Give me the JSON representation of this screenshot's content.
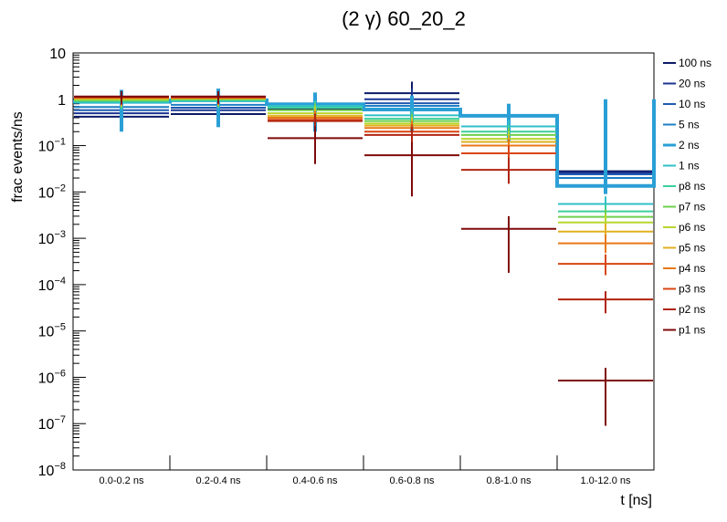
{
  "chart_data": {
    "type": "histogram",
    "title": "(2 γ) 60_20_2",
    "xlabel": "t [ns]",
    "ylabel": "frac events/ns",
    "yscale": "log",
    "ylim": [
      1e-08,
      10
    ],
    "y_ticks": [
      {
        "value": 10,
        "base": "10",
        "exp": ""
      },
      {
        "value": 1,
        "base": "1",
        "exp": ""
      },
      {
        "value": 0.1,
        "base": "10",
        "exp": "−1"
      },
      {
        "value": 0.01,
        "base": "10",
        "exp": "−2"
      },
      {
        "value": 0.001,
        "base": "10",
        "exp": "−3"
      },
      {
        "value": 0.0001,
        "base": "10",
        "exp": "−4"
      },
      {
        "value": 1e-05,
        "base": "10",
        "exp": "−5"
      },
      {
        "value": 1e-06,
        "base": "10",
        "exp": "−6"
      },
      {
        "value": 1e-07,
        "base": "10",
        "exp": "−7"
      },
      {
        "value": 1e-08,
        "base": "10",
        "exp": "−8"
      }
    ],
    "categories": [
      "0.0-0.2 ns",
      "0.2-0.4 ns",
      "0.4-0.6 ns",
      "0.6-0.8 ns",
      "0.8-1.0 ns",
      "1.0-12.0 ns"
    ],
    "highlight_series": "2 ns",
    "series": [
      {
        "name": "100 ns",
        "color": "#0b1a66",
        "values": [
          0.42,
          0.48,
          0.62,
          1.35,
          0.45,
          0.028
        ],
        "err_lo": [
          0.32,
          0.37,
          0.45,
          0.72,
          0.33,
          0.02
        ],
        "err_hi": [
          0.6,
          0.65,
          0.9,
          2.4,
          0.65,
          0.036
        ]
      },
      {
        "name": "20 ns",
        "color": "#1b3590",
        "values": [
          0.5,
          0.58,
          0.66,
          1.0,
          0.44,
          0.026
        ],
        "err_lo": [
          0.4,
          0.45,
          0.5,
          0.6,
          0.32,
          0.019
        ],
        "err_hi": [
          0.65,
          0.75,
          0.9,
          1.7,
          0.62,
          0.034
        ]
      },
      {
        "name": "10 ns",
        "color": "#1f5bb0",
        "values": [
          0.58,
          0.66,
          0.7,
          0.82,
          0.44,
          0.024
        ],
        "err_lo": [
          0.45,
          0.5,
          0.52,
          0.55,
          0.32,
          0.017
        ],
        "err_hi": [
          0.75,
          0.85,
          0.95,
          1.2,
          0.62,
          0.032
        ]
      },
      {
        "name": "5 ns",
        "color": "#1e7fc4",
        "values": [
          0.68,
          0.76,
          0.74,
          0.72,
          0.44,
          0.02
        ],
        "err_lo": [
          0.52,
          0.58,
          0.55,
          0.5,
          0.32,
          0.014
        ],
        "err_hi": [
          0.9,
          0.98,
          0.98,
          1.05,
          0.62,
          0.028
        ]
      },
      {
        "name": "2 ns",
        "color": "#2a9fd6",
        "values": [
          0.88,
          0.95,
          0.78,
          0.6,
          0.44,
          0.0135
        ],
        "err_lo": [
          0.2,
          0.25,
          0.2,
          0.2,
          0.12,
          0.009
        ],
        "err_hi": [
          1.6,
          1.7,
          1.4,
          1.2,
          0.8,
          1.0
        ]
      },
      {
        "name": "1 ns",
        "color": "#2fc0c8",
        "values": [
          0.85,
          0.92,
          0.72,
          0.45,
          0.26,
          0.0055
        ],
        "err_lo": [
          0.6,
          0.65,
          0.5,
          0.3,
          0.17,
          0.0035
        ],
        "err_hi": [
          1.1,
          1.2,
          0.95,
          0.62,
          0.36,
          0.008
        ]
      },
      {
        "name": "p8 ns",
        "color": "#3ccf9c",
        "values": [
          0.9,
          0.95,
          0.66,
          0.38,
          0.2,
          0.0038
        ],
        "err_lo": [
          0.62,
          0.67,
          0.45,
          0.25,
          0.13,
          0.0025
        ],
        "err_hi": [
          1.2,
          1.25,
          0.9,
          0.52,
          0.28,
          0.0055
        ]
      },
      {
        "name": "p7 ns",
        "color": "#6fcf4e",
        "values": [
          0.95,
          1.0,
          0.58,
          0.34,
          0.17,
          0.0029
        ],
        "err_lo": [
          0.65,
          0.7,
          0.4,
          0.22,
          0.11,
          0.0019
        ],
        "err_hi": [
          1.25,
          1.3,
          0.8,
          0.48,
          0.24,
          0.0042
        ]
      },
      {
        "name": "p6 ns",
        "color": "#b8d62e",
        "values": [
          1.0,
          1.03,
          0.5,
          0.3,
          0.14,
          0.0022
        ],
        "err_lo": [
          0.7,
          0.72,
          0.34,
          0.2,
          0.09,
          0.0014
        ],
        "err_hi": [
          1.3,
          1.35,
          0.7,
          0.42,
          0.2,
          0.0033
        ]
      },
      {
        "name": "p5 ns",
        "color": "#e0b020",
        "values": [
          1.05,
          1.05,
          0.44,
          0.27,
          0.12,
          0.0014
        ],
        "err_lo": [
          0.72,
          0.74,
          0.3,
          0.18,
          0.08,
          0.0009
        ],
        "err_hi": [
          1.35,
          1.38,
          0.62,
          0.38,
          0.17,
          0.0021
        ]
      },
      {
        "name": "p4 ns",
        "color": "#e87818",
        "values": [
          1.08,
          1.08,
          0.4,
          0.24,
          0.1,
          0.00078
        ],
        "err_lo": [
          0.75,
          0.76,
          0.28,
          0.16,
          0.065,
          0.00048
        ],
        "err_hi": [
          1.4,
          1.4,
          0.56,
          0.34,
          0.14,
          0.0012
        ]
      },
      {
        "name": "p3 ns",
        "color": "#d84512",
        "values": [
          1.1,
          1.1,
          0.36,
          0.2,
          0.068,
          0.00028
        ],
        "err_lo": [
          0.76,
          0.78,
          0.25,
          0.13,
          0.045,
          0.00016
        ],
        "err_hi": [
          1.45,
          1.42,
          0.5,
          0.29,
          0.1,
          0.00045
        ]
      },
      {
        "name": "p2 ns",
        "color": "#b02510",
        "values": [
          1.12,
          1.12,
          0.34,
          0.17,
          0.03,
          4.8e-05
        ],
        "err_lo": [
          0.78,
          0.8,
          0.23,
          0.11,
          0.015,
          2.4e-05
        ],
        "err_hi": [
          1.48,
          1.45,
          0.48,
          0.25,
          0.055,
          7.2e-05
        ]
      },
      {
        "name": "p1 ns",
        "color": "#800a0a",
        "values": [
          1.15,
          1.15,
          0.145,
          0.062,
          0.0016,
          8.5e-07
        ],
        "err_lo": [
          0.8,
          0.82,
          0.04,
          0.008,
          0.00018,
          9e-08
        ],
        "err_hi": [
          1.5,
          1.5,
          0.26,
          0.12,
          0.003,
          1.6e-06
        ]
      }
    ]
  }
}
